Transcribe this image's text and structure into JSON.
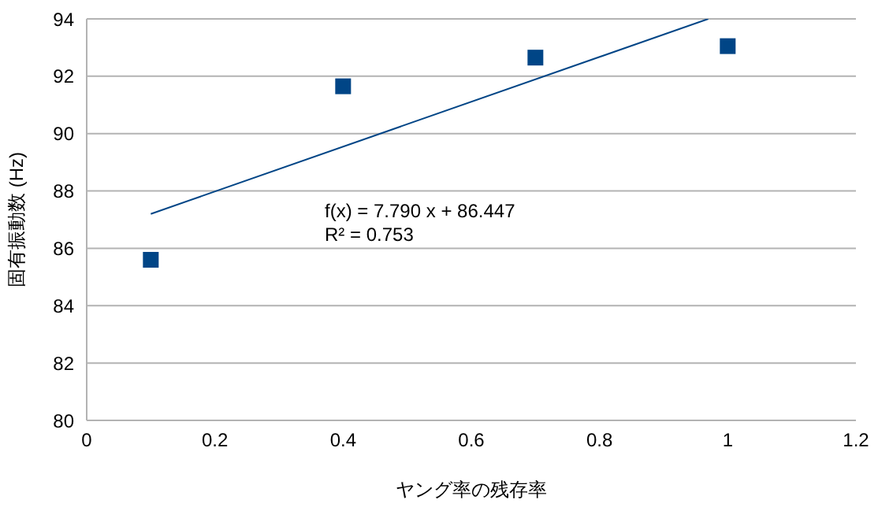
{
  "chart_data": {
    "type": "scatter",
    "xlabel": "ヤング率の残存率",
    "ylabel": "固有振動数 (Hz)",
    "xlim": [
      0,
      1.2
    ],
    "xticks": [
      0,
      0.2,
      0.4,
      0.6,
      0.8,
      1,
      1.2
    ],
    "ylim": [
      80,
      94
    ],
    "yticks": [
      80,
      82,
      84,
      86,
      88,
      90,
      92,
      94
    ],
    "grid": "y",
    "marker": "square",
    "series": [
      {
        "color": "#004586",
        "x": [
          0.1,
          0.4,
          0.7,
          1.0
        ],
        "values": [
          85.6,
          91.65,
          92.65,
          93.05
        ]
      },
      {
        "type": "line",
        "color": "#004586",
        "marker": "none",
        "x": [
          0.1,
          0.9696
        ],
        "values": [
          87.2,
          94
        ]
      }
    ],
    "annotations": [
      "f(x) = 7.790 x + 86.447",
      "R² = 0.753"
    ]
  }
}
